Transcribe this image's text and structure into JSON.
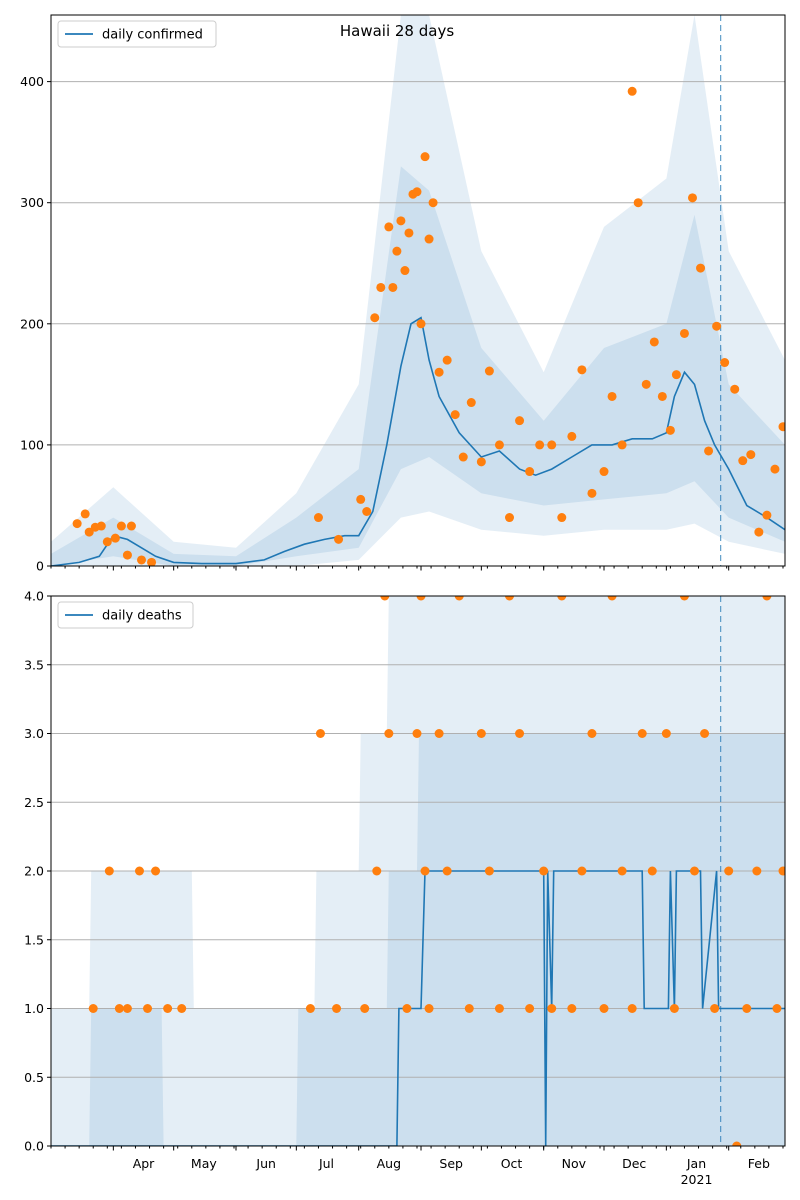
{
  "chart_data": [
    {
      "type": "line",
      "title": "Hawaii 28 days",
      "legend": {
        "label": "daily confirmed",
        "placement": "top-left"
      },
      "grid": "horizontal",
      "xlim": [
        "2020-03-01",
        "2021-03-01"
      ],
      "ylim": [
        0,
        455
      ],
      "yticks": [
        0,
        100,
        200,
        300,
        400
      ],
      "ytick_labels": [
        "0",
        "100",
        "200",
        "300",
        "400"
      ],
      "vline": "2021-01-28",
      "colors": {
        "line": "#1f77b4",
        "points": "#ff7f0e",
        "band": "#1f77b4"
      },
      "series": [
        {
          "name": "daily confirmed",
          "kind": "line",
          "x": [
            "2020-03-01",
            "2020-03-15",
            "2020-03-25",
            "2020-04-01",
            "2020-04-08",
            "2020-04-15",
            "2020-04-22",
            "2020-05-01",
            "2020-05-15",
            "2020-06-01",
            "2020-06-15",
            "2020-06-25",
            "2020-07-05",
            "2020-07-15",
            "2020-07-25",
            "2020-08-01",
            "2020-08-08",
            "2020-08-15",
            "2020-08-22",
            "2020-08-27",
            "2020-09-01",
            "2020-09-05",
            "2020-09-10",
            "2020-09-20",
            "2020-10-01",
            "2020-10-10",
            "2020-10-20",
            "2020-10-28",
            "2020-11-05",
            "2020-11-15",
            "2020-11-25",
            "2020-12-05",
            "2020-12-15",
            "2020-12-25",
            "2021-01-01",
            "2021-01-05",
            "2021-01-10",
            "2021-01-15",
            "2021-01-20",
            "2021-01-25",
            "2021-02-01",
            "2021-02-10",
            "2021-02-20",
            "2021-03-01"
          ],
          "values": [
            0,
            3,
            8,
            25,
            22,
            15,
            8,
            3,
            2,
            2,
            5,
            12,
            18,
            22,
            25,
            25,
            45,
            100,
            165,
            200,
            205,
            170,
            140,
            110,
            90,
            95,
            80,
            75,
            80,
            90,
            100,
            100,
            105,
            105,
            110,
            140,
            160,
            150,
            120,
            100,
            80,
            50,
            40,
            30
          ]
        },
        {
          "name": "",
          "kind": "scatter",
          "x": [
            "2020-03-14",
            "2020-03-18",
            "2020-03-20",
            "2020-03-23",
            "2020-03-26",
            "2020-03-29",
            "2020-04-02",
            "2020-04-05",
            "2020-04-08",
            "2020-04-10",
            "2020-04-15",
            "2020-04-20",
            "2020-07-12",
            "2020-07-22",
            "2020-08-02",
            "2020-08-05",
            "2020-08-09",
            "2020-08-12",
            "2020-08-16",
            "2020-08-18",
            "2020-08-20",
            "2020-08-22",
            "2020-08-24",
            "2020-08-26",
            "2020-08-28",
            "2020-08-30",
            "2020-09-01",
            "2020-09-03",
            "2020-09-05",
            "2020-09-07",
            "2020-09-10",
            "2020-09-14",
            "2020-09-18",
            "2020-09-22",
            "2020-09-26",
            "2020-10-01",
            "2020-10-05",
            "2020-10-10",
            "2020-10-15",
            "2020-10-20",
            "2020-10-25",
            "2020-10-30",
            "2020-11-05",
            "2020-11-10",
            "2020-11-15",
            "2020-11-20",
            "2020-11-25",
            "2020-12-01",
            "2020-12-05",
            "2020-12-10",
            "2020-12-15",
            "2020-12-18",
            "2020-12-22",
            "2020-12-26",
            "2020-12-30",
            "2021-01-03",
            "2021-01-06",
            "2021-01-10",
            "2021-01-14",
            "2021-01-18",
            "2021-01-22",
            "2021-01-26",
            "2021-01-30",
            "2021-02-04",
            "2021-02-08",
            "2021-02-12",
            "2021-02-16",
            "2021-02-20",
            "2021-02-24",
            "2021-02-28"
          ],
          "values": [
            35,
            43,
            28,
            32,
            33,
            20,
            23,
            33,
            9,
            33,
            5,
            3,
            40,
            22,
            55,
            45,
            205,
            230,
            280,
            230,
            260,
            285,
            244,
            275,
            307,
            309,
            200,
            338,
            270,
            300,
            160,
            170,
            125,
            90,
            135,
            86,
            161,
            100,
            40,
            120,
            78,
            100,
            100,
            40,
            107,
            162,
            60,
            78,
            140,
            100,
            392,
            300,
            150,
            185,
            140,
            112,
            158,
            192,
            304,
            246,
            95,
            198,
            168,
            146,
            87,
            92,
            28,
            42,
            80,
            115
          ]
        }
      ]
    },
    {
      "type": "line",
      "title": "",
      "legend": {
        "label": "daily deaths",
        "placement": "top-left"
      },
      "grid": "horizontal",
      "xlim": [
        "2020-03-01",
        "2021-03-01"
      ],
      "ylim": [
        0,
        4.0
      ],
      "yticks": [
        0,
        0.5,
        1.0,
        1.5,
        2.0,
        2.5,
        3.0,
        3.5,
        4.0
      ],
      "ytick_labels": [
        "0.0",
        "0.5",
        "1.0",
        "1.5",
        "2.0",
        "2.5",
        "3.0",
        "3.5",
        "4.0"
      ],
      "xtick_labels": [
        "Apr",
        "May",
        "Jun",
        "Jul",
        "Aug",
        "Sep",
        "Oct",
        "Nov",
        "Dec",
        "Jan\n2021",
        "Feb"
      ],
      "vline": "2021-01-28",
      "colors": {
        "line": "#1f77b4",
        "points": "#ff7f0e",
        "band": "#1f77b4"
      },
      "series": [
        {
          "name": "daily deaths",
          "kind": "line",
          "x": [
            "2020-03-01",
            "2020-08-20",
            "2020-08-21",
            "2020-09-01",
            "2020-09-03",
            "2020-09-04",
            "2020-11-01",
            "2020-11-02",
            "2020-11-03",
            "2020-11-05",
            "2020-11-06",
            "2020-12-20",
            "2020-12-21",
            "2021-01-02",
            "2021-01-03",
            "2021-01-05",
            "2021-01-06",
            "2021-01-18",
            "2021-01-19",
            "2021-01-26",
            "2021-01-27",
            "2021-03-01"
          ],
          "values": [
            0,
            0,
            1,
            1,
            2,
            2,
            2,
            0,
            2,
            1,
            2,
            2,
            1,
            1,
            2,
            1,
            2,
            2,
            1,
            2,
            1,
            1
          ]
        },
        {
          "name": "",
          "kind": "scatter",
          "x": [
            "2020-03-22",
            "2020-03-30",
            "2020-04-04",
            "2020-04-08",
            "2020-04-14",
            "2020-04-18",
            "2020-04-22",
            "2020-04-28",
            "2020-05-05",
            "2020-07-08",
            "2020-07-13",
            "2020-07-21",
            "2020-08-04",
            "2020-08-10",
            "2020-08-14",
            "2020-08-16",
            "2020-08-25",
            "2020-08-30",
            "2020-09-01",
            "2020-09-03",
            "2020-09-05",
            "2020-09-10",
            "2020-09-14",
            "2020-09-20",
            "2020-09-25",
            "2020-10-01",
            "2020-10-05",
            "2020-10-10",
            "2020-10-15",
            "2020-10-20",
            "2020-10-25",
            "2020-11-01",
            "2020-11-05",
            "2020-11-10",
            "2020-11-15",
            "2020-11-20",
            "2020-11-25",
            "2020-12-01",
            "2020-12-05",
            "2020-12-10",
            "2020-12-15",
            "2020-12-20",
            "2020-12-25",
            "2021-01-01",
            "2021-01-05",
            "2021-01-10",
            "2021-01-15",
            "2021-01-20",
            "2021-01-25",
            "2021-02-01",
            "2021-02-05",
            "2021-02-10",
            "2021-02-15",
            "2021-02-20",
            "2021-02-25",
            "2021-02-28"
          ],
          "values": [
            1,
            2,
            1,
            1,
            2,
            1,
            2,
            1,
            1,
            1,
            3,
            1,
            1,
            2,
            4,
            3,
            1,
            3,
            4,
            2,
            1,
            3,
            2,
            4,
            1,
            3,
            2,
            1,
            4,
            3,
            1,
            2,
            1,
            4,
            1,
            2,
            3,
            1,
            4,
            2,
            1,
            3,
            2,
            3,
            1,
            4,
            2,
            3,
            1,
            2,
            0,
            1,
            2,
            4,
            1,
            2
          ]
        }
      ]
    }
  ]
}
